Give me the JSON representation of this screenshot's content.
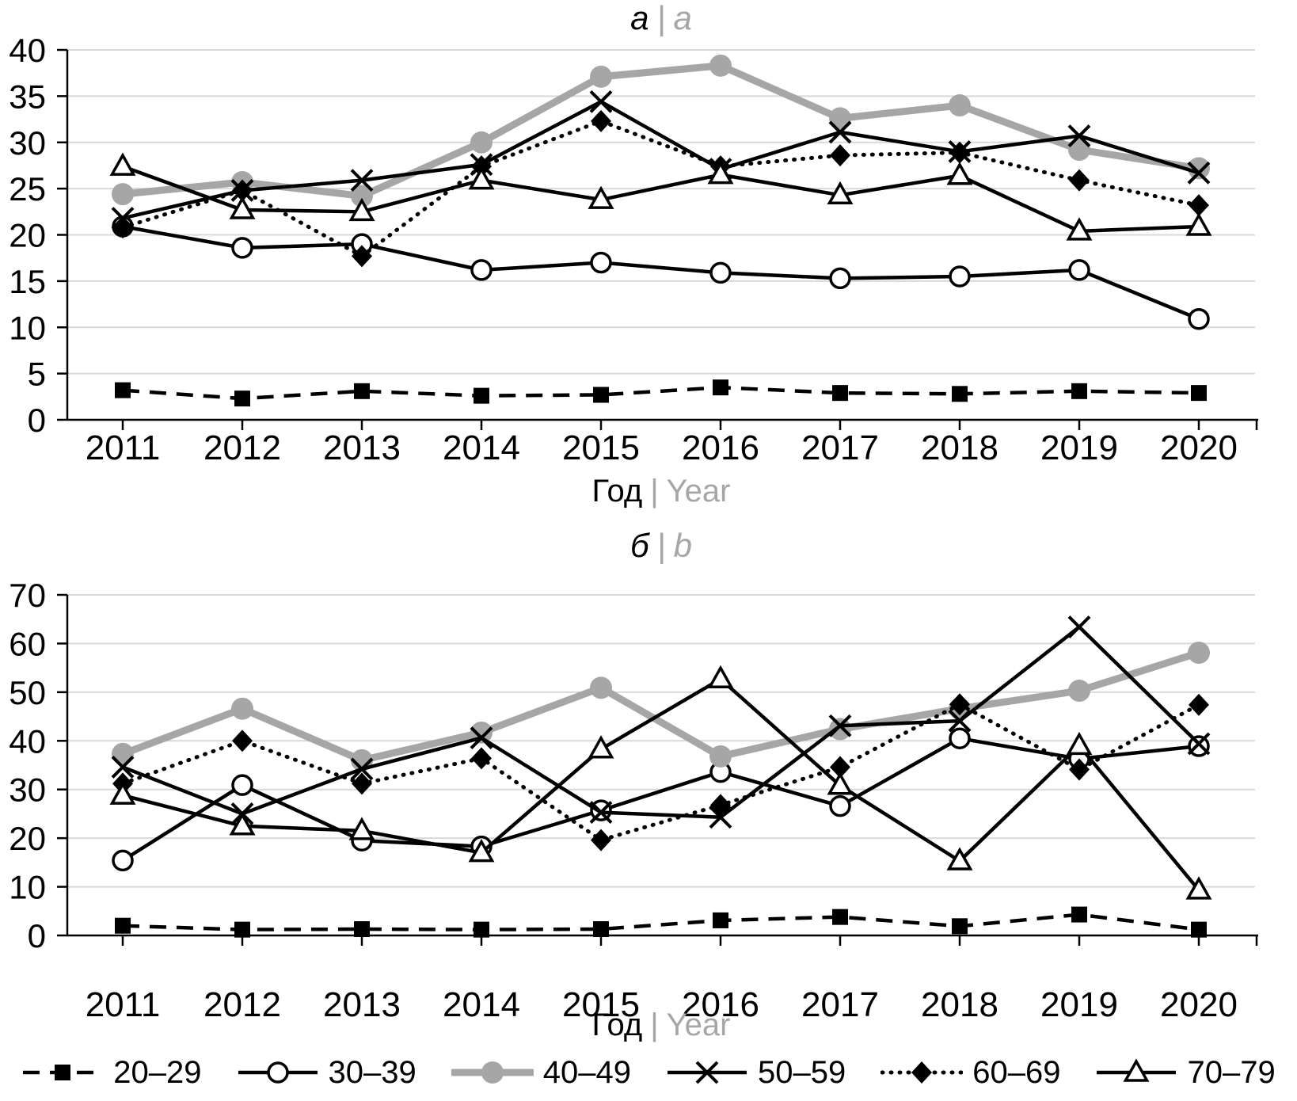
{
  "colors": {
    "grid": "#d9d9d9",
    "axis": "#000000",
    "black_series": "#000000",
    "gray_series": "#a6a6a6",
    "muted_text": "#a6a6a6",
    "text": "#000000"
  },
  "legend": {
    "items": [
      "20–29",
      "30–39",
      "40–49",
      "50–59",
      "60–69",
      "70–79"
    ]
  },
  "chart_data": [
    {
      "id": "a",
      "type": "line",
      "title": {
        "ru": "а",
        "sep": "|",
        "en": "a"
      },
      "xlabel": {
        "ru": "Год",
        "sep": "|",
        "en": "Year"
      },
      "ylim": [
        0,
        40
      ],
      "ytick_step": 5,
      "grid": "horizontal",
      "legend_position": "bottom-shared",
      "categories": [
        "2011",
        "2012",
        "2013",
        "2014",
        "2015",
        "2016",
        "2017",
        "2018",
        "2019",
        "2020"
      ],
      "series": [
        {
          "name": "20–29",
          "marker": "filled-square",
          "line": "dashed",
          "color": "#000000",
          "values": [
            3.2,
            2.3,
            3.1,
            2.6,
            2.7,
            3.5,
            2.9,
            2.8,
            3.1,
            2.9
          ]
        },
        {
          "name": "30–39",
          "marker": "open-circle",
          "line": "solid",
          "color": "#000000",
          "values": [
            20.9,
            18.6,
            19.0,
            16.2,
            17.0,
            15.9,
            15.3,
            15.5,
            16.2,
            10.9
          ]
        },
        {
          "name": "40–49",
          "marker": "filled-circle",
          "line": "solid-thick",
          "color": "#a6a6a6",
          "values": [
            24.4,
            25.7,
            24.2,
            30.0,
            37.1,
            38.3,
            32.6,
            34.0,
            29.2,
            27.2
          ]
        },
        {
          "name": "50–59",
          "marker": "x-cross",
          "line": "solid",
          "color": "#000000",
          "values": [
            21.8,
            24.8,
            25.9,
            27.6,
            34.4,
            27.1,
            31.1,
            29.0,
            30.7,
            26.7
          ]
        },
        {
          "name": "60–69",
          "marker": "filled-diamond",
          "line": "dotted",
          "color": "#000000",
          "values": [
            20.8,
            24.8,
            17.7,
            27.4,
            32.3,
            27.4,
            28.6,
            28.9,
            25.9,
            23.2
          ]
        },
        {
          "name": "70–79",
          "marker": "open-triangle",
          "line": "solid",
          "color": "#000000",
          "values": [
            27.4,
            22.7,
            22.5,
            25.9,
            23.8,
            26.5,
            24.3,
            26.4,
            20.4,
            20.9
          ]
        }
      ]
    },
    {
      "id": "b",
      "type": "line",
      "title": {
        "ru": "б",
        "sep": "|",
        "en": "b"
      },
      "xlabel": {
        "ru": "Год",
        "sep": "|",
        "en": "Year"
      },
      "ylim": [
        0,
        70
      ],
      "ytick_step": 10,
      "grid": "horizontal",
      "legend_position": "bottom-shared",
      "categories": [
        "2011",
        "2012",
        "2013",
        "2014",
        "2015",
        "2016",
        "2017",
        "2018",
        "2019",
        "2020"
      ],
      "series": [
        {
          "name": "20–29",
          "marker": "filled-square",
          "line": "dashed",
          "color": "#000000",
          "values": [
            2.0,
            1.2,
            1.3,
            1.2,
            1.3,
            3.1,
            3.8,
            1.9,
            4.3,
            1.2
          ]
        },
        {
          "name": "30–39",
          "marker": "open-circle",
          "line": "solid",
          "color": "#000000",
          "values": [
            15.4,
            30.9,
            19.5,
            18.3,
            25.7,
            33.6,
            26.6,
            40.5,
            36.3,
            38.9
          ]
        },
        {
          "name": "40–49",
          "marker": "filled-circle",
          "line": "solid-thick",
          "color": "#a6a6a6",
          "values": [
            37.3,
            46.6,
            36.0,
            41.7,
            50.9,
            36.8,
            42.4,
            46.6,
            50.3,
            58.1
          ]
        },
        {
          "name": "50–59",
          "marker": "x-cross",
          "line": "solid",
          "color": "#000000",
          "values": [
            34.6,
            25.0,
            34.2,
            40.6,
            25.3,
            24.3,
            43.1,
            44.1,
            63.4,
            39.4
          ]
        },
        {
          "name": "60–69",
          "marker": "filled-diamond",
          "line": "dotted",
          "color": "#000000",
          "values": [
            31.2,
            40.0,
            31.2,
            36.4,
            19.6,
            26.8,
            34.6,
            47.5,
            34.1,
            47.4
          ]
        },
        {
          "name": "70–79",
          "marker": "open-triangle",
          "line": "solid",
          "color": "#000000",
          "values": [
            28.8,
            22.5,
            21.5,
            17.0,
            38.3,
            52.7,
            30.8,
            15.3,
            39.0,
            9.3
          ]
        }
      ]
    }
  ]
}
